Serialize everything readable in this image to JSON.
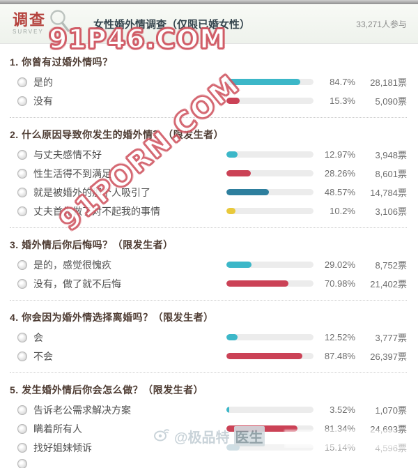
{
  "header": {
    "logo_text": "调查",
    "logo_subtext": "SURVEY",
    "title": "女性婚外情调查（仅限已婚女性）",
    "participants": "33,271人参与"
  },
  "watermarks": {
    "top_banner": "91P46.COM",
    "diagonal": "91PORN.COM",
    "weibo": {
      "prefix": "@极品特",
      "tail": "医生"
    }
  },
  "colors": {
    "cyan": "#3cb7c8",
    "crimson": "#cb4256",
    "teal_dark": "#2e7f9e",
    "yellow": "#e9c93b",
    "track": "#ececec",
    "watermark_red": "#d05560"
  },
  "questions": [
    {
      "title": "1. 你曾有过婚外情吗？",
      "options": [
        {
          "label": "是的",
          "pct": "84.7%",
          "votes": "28,181票",
          "color": "cyan",
          "value": 84.7
        },
        {
          "label": "没有",
          "pct": "15.3%",
          "votes": "5,090票",
          "color": "crimson",
          "value": 15.3
        }
      ]
    },
    {
      "title": "2. 什么原因导致你发生的婚外情？（限发生者）",
      "options": [
        {
          "label": "与丈夫感情不好",
          "pct": "12.97%",
          "votes": "3,948票",
          "color": "cyan",
          "value": 12.97
        },
        {
          "label": "性生活得不到满足",
          "pct": "28.26%",
          "votes": "8,601票",
          "color": "crimson",
          "value": 28.26
        },
        {
          "label": "就是被婚外的那个人吸引了",
          "pct": "48.57%",
          "votes": "14,784票",
          "color": "teal_dark",
          "value": 48.57
        },
        {
          "label": "丈夫首先做了对不起我的事情",
          "pct": "10.2%",
          "votes": "3,106票",
          "color": "yellow",
          "value": 10.2
        }
      ]
    },
    {
      "title": "3. 婚外情后你后悔吗？（限发生者）",
      "options": [
        {
          "label": "是的，感觉很愧疚",
          "pct": "29.02%",
          "votes": "8,752票",
          "color": "cyan",
          "value": 29.02
        },
        {
          "label": "没有，做了就不后悔",
          "pct": "70.98%",
          "votes": "21,402票",
          "color": "crimson",
          "value": 70.98
        }
      ]
    },
    {
      "title": "4. 你会因为婚外情选择离婚吗？（限发生者）",
      "options": [
        {
          "label": "会",
          "pct": "12.52%",
          "votes": "3,777票",
          "color": "cyan",
          "value": 12.52
        },
        {
          "label": "不会",
          "pct": "87.48%",
          "votes": "26,397票",
          "color": "crimson",
          "value": 87.48
        }
      ]
    },
    {
      "title": "5. 发生婚外情后你会怎么做？（限发生者）",
      "options": [
        {
          "label": "告诉老公需求解决方案",
          "pct": "3.52%",
          "votes": "1,070票",
          "color": "cyan",
          "value": 3.52
        },
        {
          "label": "瞒着所有人",
          "pct": "81.34%",
          "votes": "24,693票",
          "color": "crimson",
          "value": 81.34
        },
        {
          "label": "找好姐妹倾诉",
          "pct": "15.14%",
          "votes": "4,596票",
          "color": "teal_dark",
          "value": 15.14,
          "faded": true
        },
        {
          "cutoff": true
        }
      ]
    }
  ]
}
